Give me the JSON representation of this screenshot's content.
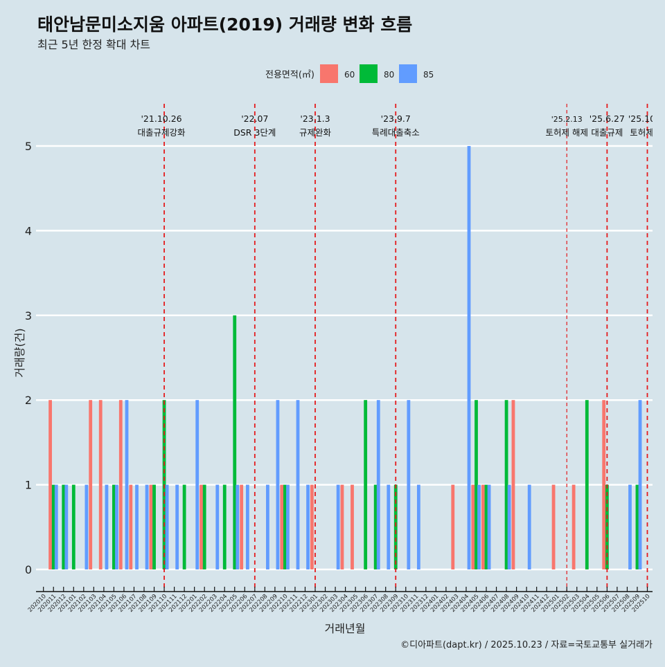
{
  "chart_data": {
    "type": "bar",
    "title": "태안남문미소지움 아파트(2019) 거래량 변화 흐름",
    "subtitle": "최근 5년 한정 확대 차트",
    "xlabel": "거래년월",
    "ylabel": "거래량(건)",
    "ylim": [
      0,
      5
    ],
    "yticks": [
      "0",
      "1",
      "2",
      "3",
      "4",
      "5"
    ],
    "caption": "©디아파트(dapt.kr) / 2025.10.23 / 자료=국토교통부 실거래가",
    "legend": {
      "title": "전용면적(㎡)",
      "position": "top",
      "entries": [
        {
          "label": "60",
          "color": "#f8766d"
        },
        {
          "label": "80",
          "color": "#00ba38"
        },
        {
          "label": "85",
          "color": "#619cff"
        }
      ]
    },
    "categories": [
      "202010",
      "202011",
      "202012",
      "202101",
      "202102",
      "202103",
      "202104",
      "202105",
      "202106",
      "202107",
      "202108",
      "202109",
      "202110",
      "202111",
      "202112",
      "202201",
      "202202",
      "202203",
      "202204",
      "202205",
      "202206",
      "202207",
      "202208",
      "202209",
      "202210",
      "202211",
      "202212",
      "202301",
      "202302",
      "202303",
      "202304",
      "202305",
      "202306",
      "202307",
      "202308",
      "202309",
      "202310",
      "202311",
      "202312",
      "202401",
      "202402",
      "202403",
      "202404",
      "202405",
      "202406",
      "202407",
      "202408",
      "202409",
      "202410",
      "202411",
      "202412",
      "202501",
      "202502",
      "202503",
      "202504",
      "202505",
      "202506",
      "202507",
      "202508",
      "202509",
      "202510"
    ],
    "series": [
      {
        "name": "60",
        "points": [
          [
            "202011",
            2
          ],
          [
            "202103",
            2
          ],
          [
            "202104",
            2
          ],
          [
            "202106",
            2
          ],
          [
            "202107",
            1
          ],
          [
            "202109",
            1
          ],
          [
            "202202",
            1
          ],
          [
            "202206",
            1
          ],
          [
            "202210",
            1
          ],
          [
            "202301",
            1
          ],
          [
            "202304",
            1
          ],
          [
            "202305",
            1
          ],
          [
            "202403",
            1
          ],
          [
            "202405",
            1
          ],
          [
            "202406",
            1
          ],
          [
            "202409",
            2
          ],
          [
            "202501",
            1
          ],
          [
            "202503",
            1
          ],
          [
            "202506",
            2
          ]
        ]
      },
      {
        "name": "80",
        "points": [
          [
            "202011",
            1
          ],
          [
            "202012",
            1
          ],
          [
            "202101",
            1
          ],
          [
            "202105",
            1
          ],
          [
            "202109",
            1
          ],
          [
            "202110",
            2
          ],
          [
            "202112",
            1
          ],
          [
            "202202",
            1
          ],
          [
            "202204",
            1
          ],
          [
            "202205",
            3
          ],
          [
            "202210",
            1
          ],
          [
            "202306",
            2
          ],
          [
            "202307",
            1
          ],
          [
            "202309",
            1
          ],
          [
            "202405",
            2
          ],
          [
            "202406",
            1
          ],
          [
            "202408",
            2
          ],
          [
            "202504",
            2
          ],
          [
            "202506",
            1
          ],
          [
            "202509",
            1
          ]
        ]
      },
      {
        "name": "85",
        "points": [
          [
            "202011",
            1
          ],
          [
            "202012",
            1
          ],
          [
            "202102",
            1
          ],
          [
            "202104",
            1
          ],
          [
            "202105",
            1
          ],
          [
            "202106",
            2
          ],
          [
            "202107",
            1
          ],
          [
            "202108",
            1
          ],
          [
            "202110",
            1
          ],
          [
            "202111",
            1
          ],
          [
            "202201",
            2
          ],
          [
            "202203",
            1
          ],
          [
            "202205",
            1
          ],
          [
            "202206",
            1
          ],
          [
            "202208",
            1
          ],
          [
            "202209",
            2
          ],
          [
            "202210",
            1
          ],
          [
            "202211",
            2
          ],
          [
            "202212",
            1
          ],
          [
            "202303",
            1
          ],
          [
            "202307",
            2
          ],
          [
            "202308",
            1
          ],
          [
            "202310",
            2
          ],
          [
            "202311",
            1
          ],
          [
            "202404",
            5
          ],
          [
            "202405",
            1
          ],
          [
            "202406",
            1
          ],
          [
            "202408",
            1
          ],
          [
            "202410",
            1
          ],
          [
            "202508",
            1
          ],
          [
            "202509",
            2
          ]
        ]
      }
    ],
    "events": [
      {
        "month": "202110",
        "date": "'21.10.26",
        "label": "대출규제강화"
      },
      {
        "month": "202207",
        "date": "'22.07",
        "label": "DSR 3단계"
      },
      {
        "month": "202301",
        "date": "'23.1.3",
        "label": "규제완화"
      },
      {
        "month": "202309",
        "date": "'23.9.7",
        "label": "특례대출축소"
      },
      {
        "month": "202502",
        "date": "'25.2.13",
        "label": "토허제 해제"
      },
      {
        "month": "202506",
        "date": "'25.6.27",
        "label": "대출규제"
      },
      {
        "month": "202510",
        "date": "'25.10",
        "label": "토허제"
      }
    ]
  }
}
